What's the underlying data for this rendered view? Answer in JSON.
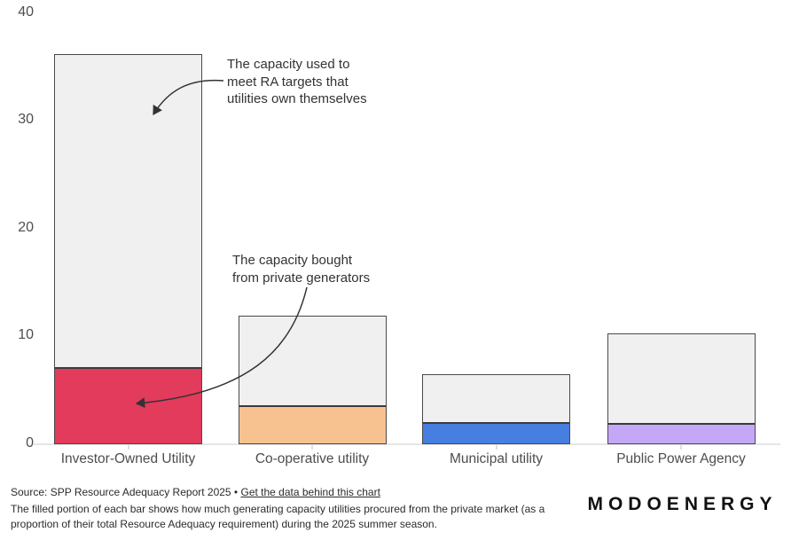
{
  "chart_data": {
    "type": "bar",
    "title": "",
    "xlabel": "",
    "ylabel": "",
    "ylim": [
      0,
      40
    ],
    "y_ticks": [
      0,
      10,
      20,
      30,
      40
    ],
    "grid": false,
    "legend_position": "none",
    "categories": [
      "Investor-Owned Utility",
      "Co-operative utility",
      "Municipal utility",
      "Public Power Agency"
    ],
    "series": [
      {
        "name": "Capacity bought from private generators (filled)",
        "values": [
          7.1,
          3.5,
          2.0,
          1.9
        ]
      },
      {
        "name": "Total capacity used to meet RA targets (outline)",
        "values": [
          36.2,
          11.9,
          6.5,
          10.3
        ]
      }
    ],
    "bars": [
      {
        "category": "Investor-Owned Utility",
        "total": 36.2,
        "filled": 7.1,
        "fill_color": "#e23b5c"
      },
      {
        "category": "Co-operative utility",
        "total": 11.9,
        "filled": 3.5,
        "fill_color": "#f8c290"
      },
      {
        "category": "Municipal utility",
        "total": 6.5,
        "filled": 2.0,
        "fill_color": "#477fe1"
      },
      {
        "category": "Public Power Agency",
        "total": 10.3,
        "filled": 1.9,
        "fill_color": "#c4a8f7"
      }
    ],
    "unfilled_color": "#f0f0f0",
    "bar_border_color": "#4a4a4a"
  },
  "annotations": {
    "own_capacity": {
      "lines": [
        "The capacity used to",
        "meet RA targets that",
        "utilities own themselves"
      ]
    },
    "bought_capacity": {
      "lines": [
        "The capacity bought",
        "from private generators"
      ]
    }
  },
  "footer": {
    "source_prefix": "Source: SPP Resource Adequacy Report 2025 •",
    "link_text": "Get the data behind this chart",
    "description": "The filled portion of each bar shows how much generating capacity utilities procured from the private market (as a proportion of their total Resource Adequacy requirement) during the 2025 summer season."
  },
  "logo": {
    "text": "MODOENERGY"
  }
}
